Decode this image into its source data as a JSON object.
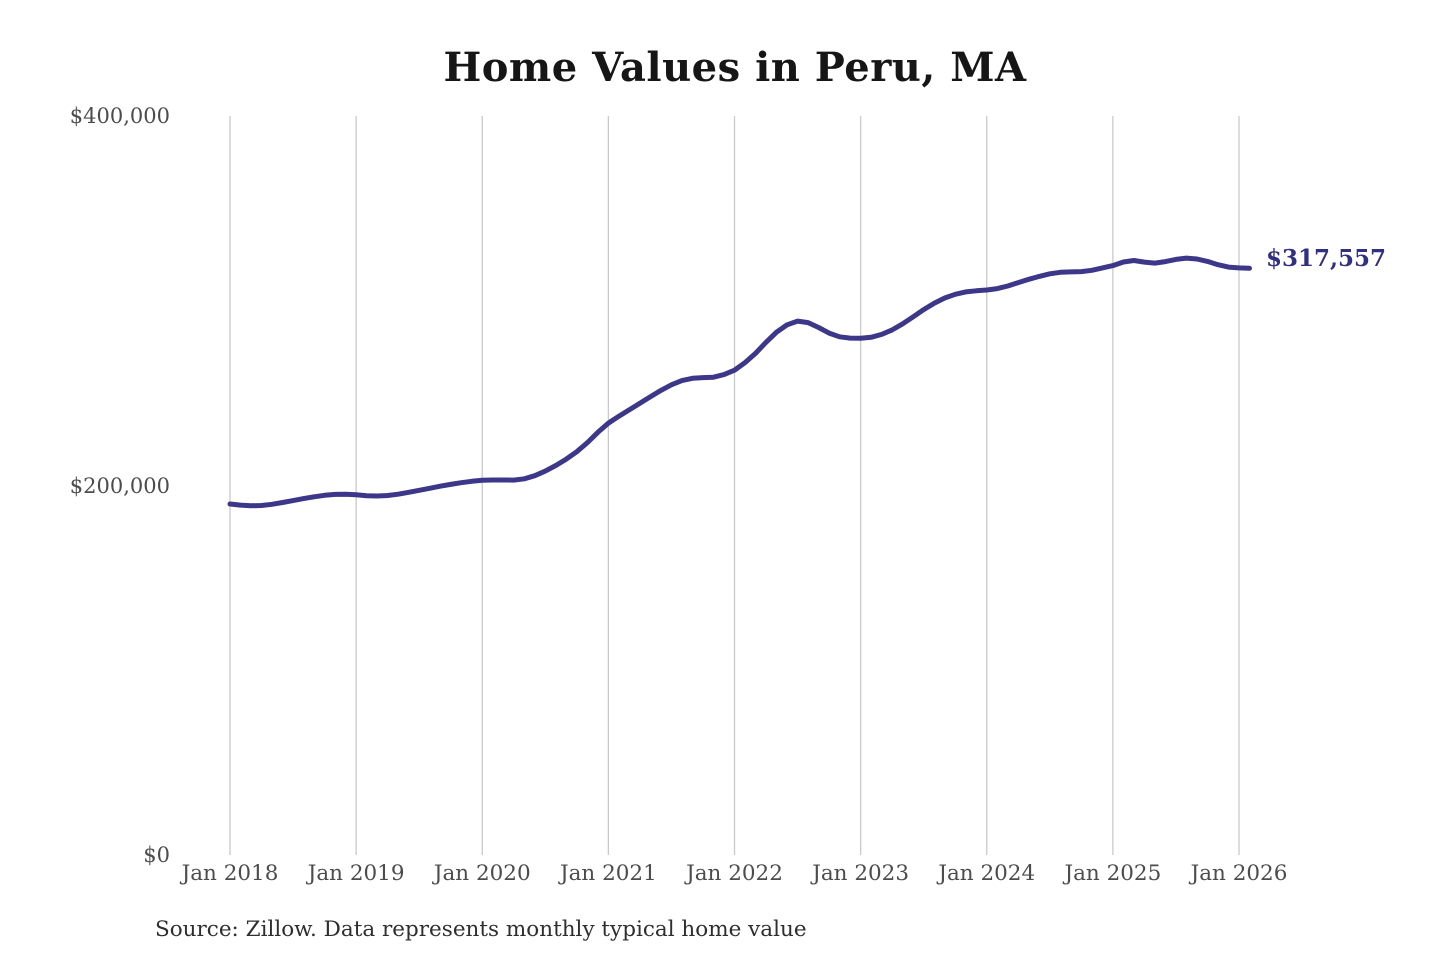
{
  "source_note": "Source: Zillow. Data represents monthly typical home value",
  "colors": {
    "line": "#3c3789",
    "grid": "#c9c9c9",
    "tick_text": "#4c4c4c",
    "title_text": "#161616",
    "end_label_text": "#322e80",
    "source_text": "#2e2e2e",
    "background": "#ffffff"
  },
  "chart_data": {
    "type": "line",
    "title": "Home Values in Peru, MA",
    "end_label": "$317,557",
    "end_value": 317557,
    "grid": "vertical-only",
    "legend": "none",
    "xlabel": "",
    "ylabel": "",
    "ylim": [
      0,
      400000
    ],
    "y_tick_labels": [
      "$0",
      "$200,000",
      "$400,000"
    ],
    "y_tick_values": [
      0,
      200000,
      400000
    ],
    "x_tick_labels": [
      "Jan 2018",
      "Jan 2019",
      "Jan 2020",
      "Jan 2021",
      "Jan 2022",
      "Jan 2023",
      "Jan 2024",
      "Jan 2025",
      "Jan 2026"
    ],
    "x_start_month": "Jan 2018",
    "x_end_month": "Feb 2026",
    "frequency": "monthly",
    "series": [
      {
        "name": "Typical home value",
        "values": [
          190000,
          189400,
          189000,
          189200,
          189800,
          190800,
          191800,
          192900,
          193900,
          194700,
          195200,
          195300,
          195000,
          194500,
          194300,
          194600,
          195300,
          196300,
          197400,
          198500,
          199600,
          200600,
          201500,
          202300,
          202800,
          203000,
          203000,
          202900,
          203600,
          205300,
          207800,
          210800,
          214300,
          218300,
          223200,
          228800,
          233800,
          237500,
          241000,
          244500,
          248000,
          251500,
          254500,
          256800,
          258000,
          258400,
          258600,
          260000,
          262400,
          266500,
          271500,
          277500,
          283000,
          287000,
          289000,
          288200,
          285500,
          282500,
          280500,
          279800,
          279700,
          280200,
          281800,
          284200,
          287500,
          291300,
          295200,
          298700,
          301500,
          303500,
          304800,
          305400,
          305800,
          306600,
          308000,
          309800,
          311600,
          313200,
          314600,
          315400,
          315600,
          315800,
          316500,
          317800,
          319000,
          321000,
          321800,
          320900,
          320400,
          321200,
          322400,
          323100,
          322600,
          321300,
          319500,
          318200,
          317800,
          317557
        ]
      }
    ]
  }
}
